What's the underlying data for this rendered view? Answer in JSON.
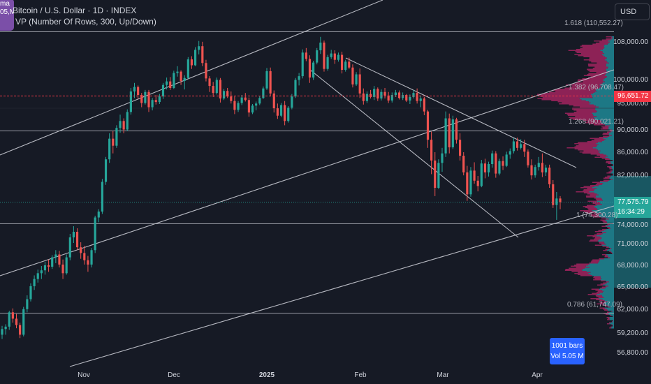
{
  "legend": {
    "avatar_line1": "ma",
    "avatar_line2": "05,M",
    "symbol": "Bitcoin / U.S. Dollar · 1D · INDEX",
    "indicator": "VP (Number Of Rows, 300, Up/Down)"
  },
  "currency": "USD",
  "price_ticks": [
    "108,000.00",
    "100,000.00",
    "95,000.00",
    "90,000.00",
    "86,000.00",
    "82,000.00",
    "74,000.00",
    "71,000.00",
    "68,000.00",
    "65,000.00",
    "62,000.00",
    "59,200.00",
    "56,800.00"
  ],
  "price_labels": {
    "red_line": "96,651.72",
    "current": "77,575.79",
    "countdown": "16:34:29"
  },
  "fib_labels": [
    "1.618 (110,552.27)",
    "1.382 (96,708.47)",
    "1.268 (90,021.21)",
    "1 (74,300.28)",
    "0.786 (61,747.09)"
  ],
  "time_ticks": [
    "Nov",
    "Dec",
    "2025",
    "Feb",
    "Mar",
    "Apr"
  ],
  "badge": {
    "bars": "1001 bars",
    "vol": "Vol 5.05 M"
  },
  "colors": {
    "up": "#26a69a",
    "down": "#ef5350",
    "profile_up": "#1e8a96",
    "profile_down": "#a2255f",
    "red_line": "#f23645",
    "badge": "#2962ff"
  },
  "chart_data": {
    "type": "candlestick",
    "x_range": [
      "2024-10-15",
      "2025-04-08"
    ],
    "ohlc": [
      [
        59000,
        60100,
        58500,
        59700
      ],
      [
        59700,
        60300,
        59000,
        60000
      ],
      [
        60000,
        62000,
        59600,
        61800
      ],
      [
        61800,
        62300,
        60500,
        61000
      ],
      [
        61000,
        61600,
        59800,
        60200
      ],
      [
        60200,
        60500,
        58600,
        59000
      ],
      [
        59000,
        62500,
        58800,
        62200
      ],
      [
        62200,
        64000,
        61800,
        63500
      ],
      [
        63500,
        65600,
        63200,
        65200
      ],
      [
        65200,
        66700,
        64700,
        66200
      ],
      [
        66200,
        67500,
        65700,
        67000
      ],
      [
        67000,
        68000,
        66200,
        67400
      ],
      [
        67400,
        68600,
        66800,
        68100
      ],
      [
        68100,
        68900,
        67200,
        67900
      ],
      [
        67900,
        69500,
        67600,
        69200
      ],
      [
        69200,
        70200,
        68400,
        69600
      ],
      [
        69600,
        70100,
        67800,
        68200
      ],
      [
        68200,
        68900,
        66200,
        67000
      ],
      [
        67000,
        69600,
        66800,
        69200
      ],
      [
        69200,
        72500,
        68800,
        72000
      ],
      [
        72000,
        73600,
        71200,
        72800
      ],
      [
        72800,
        73300,
        70200,
        70600
      ],
      [
        70600,
        71300,
        69000,
        69800
      ],
      [
        69800,
        70800,
        68200,
        68800
      ],
      [
        68800,
        69400,
        67200,
        68200
      ],
      [
        68200,
        70500,
        67800,
        70200
      ],
      [
        70200,
        75300,
        69800,
        75000
      ],
      [
        75000,
        76400,
        74200,
        76000
      ],
      [
        76000,
        81500,
        75600,
        81000
      ],
      [
        81000,
        85200,
        80500,
        84800
      ],
      [
        84800,
        89500,
        84200,
        88500
      ],
      [
        88500,
        89900,
        85800,
        87200
      ],
      [
        87200,
        91000,
        86800,
        90500
      ],
      [
        90500,
        93000,
        89600,
        91800
      ],
      [
        91800,
        92300,
        89500,
        90200
      ],
      [
        90200,
        94000,
        89900,
        93500
      ],
      [
        93500,
        98200,
        93000,
        97500
      ],
      [
        97500,
        99200,
        96200,
        98400
      ],
      [
        98400,
        98700,
        96000,
        96800
      ],
      [
        96800,
        97200,
        94400,
        95200
      ],
      [
        95200,
        97800,
        94900,
        97400
      ],
      [
        97400,
        97800,
        93500,
        94400
      ],
      [
        94400,
        96200,
        93800,
        95800
      ],
      [
        95800,
        96800,
        94900,
        95400
      ],
      [
        95400,
        97000,
        95000,
        96500
      ],
      [
        96500,
        99200,
        96000,
        98800
      ],
      [
        98800,
        100300,
        97900,
        99500
      ],
      [
        99500,
        100400,
        97800,
        98200
      ],
      [
        98200,
        101800,
        98000,
        101300
      ],
      [
        101300,
        102800,
        100500,
        101600
      ],
      [
        101600,
        101900,
        98800,
        99600
      ],
      [
        99600,
        100800,
        97900,
        100200
      ],
      [
        100200,
        104800,
        100000,
        104300
      ],
      [
        104300,
        105000,
        102200,
        103000
      ],
      [
        103000,
        107000,
        102800,
        106400
      ],
      [
        106400,
        108400,
        105400,
        107200
      ],
      [
        107200,
        108200,
        102800,
        103500
      ],
      [
        103500,
        104200,
        99500,
        100100
      ],
      [
        100100,
        100600,
        97400,
        98600
      ],
      [
        98600,
        99400,
        96400,
        97200
      ],
      [
        97200,
        100300,
        96900,
        99800
      ],
      [
        99800,
        100200,
        95300,
        96100
      ],
      [
        96100,
        98000,
        95800,
        97600
      ],
      [
        97600,
        98200,
        96200,
        96500
      ],
      [
        96500,
        97500,
        95100,
        95600
      ],
      [
        95600,
        96500,
        93100,
        93900
      ],
      [
        93900,
        95600,
        93500,
        95200
      ],
      [
        95200,
        96800,
        94800,
        96300
      ],
      [
        96300,
        97200,
        95500,
        95800
      ],
      [
        95800,
        96300,
        92600,
        93400
      ],
      [
        93400,
        95000,
        93100,
        94700
      ],
      [
        94700,
        95500,
        93800,
        95100
      ],
      [
        95100,
        96600,
        94800,
        96200
      ],
      [
        96200,
        98500,
        96000,
        98100
      ],
      [
        98100,
        102400,
        97800,
        101700
      ],
      [
        101700,
        102500,
        96500,
        97100
      ],
      [
        97100,
        97700,
        93400,
        94200
      ],
      [
        94200,
        95100,
        92200,
        92800
      ],
      [
        92800,
        95200,
        92500,
        94800
      ],
      [
        94800,
        95600,
        91000,
        91800
      ],
      [
        91800,
        94600,
        91500,
        94300
      ],
      [
        94300,
        97000,
        94000,
        96500
      ],
      [
        96500,
        100200,
        96200,
        99800
      ],
      [
        99800,
        101300,
        98700,
        100600
      ],
      [
        100600,
        106500,
        100100,
        105800
      ],
      [
        105800,
        106800,
        103900,
        104400
      ],
      [
        104400,
        105200,
        99200,
        100300
      ],
      [
        100300,
        104000,
        99800,
        103600
      ],
      [
        103600,
        106800,
        103200,
        106300
      ],
      [
        106300,
        109400,
        105500,
        108000
      ],
      [
        108000,
        108500,
        101600,
        102200
      ],
      [
        102200,
        105300,
        101800,
        104800
      ],
      [
        104800,
        106400,
        104400,
        105600
      ],
      [
        105600,
        106300,
        103300,
        104200
      ],
      [
        104200,
        105800,
        103800,
        105300
      ],
      [
        105300,
        106000,
        101200,
        102000
      ],
      [
        102000,
        104200,
        101600,
        103800
      ],
      [
        103800,
        104700,
        102200,
        102500
      ],
      [
        102500,
        103200,
        98300,
        98900
      ],
      [
        98900,
        101500,
        98600,
        101000
      ],
      [
        101000,
        102300,
        96200,
        97100
      ],
      [
        97100,
        98100,
        94900,
        95600
      ],
      [
        95600,
        97500,
        95200,
        97000
      ],
      [
        97000,
        97800,
        96100,
        96400
      ],
      [
        96400,
        98600,
        95800,
        98000
      ],
      [
        98000,
        98300,
        95600,
        96100
      ],
      [
        96100,
        97900,
        95700,
        97400
      ],
      [
        97400,
        98200,
        96100,
        96700
      ],
      [
        96700,
        97400,
        95200,
        95700
      ],
      [
        95700,
        97300,
        95300,
        96800
      ],
      [
        96800,
        97800,
        96400,
        97300
      ],
      [
        97300,
        97700,
        95900,
        96200
      ],
      [
        96200,
        97300,
        95800,
        96800
      ],
      [
        96800,
        97000,
        95400,
        95700
      ],
      [
        95700,
        96900,
        95000,
        96400
      ],
      [
        96400,
        97800,
        96100,
        97200
      ],
      [
        97200,
        98100,
        95100,
        95600
      ],
      [
        95600,
        96700,
        94400,
        96100
      ],
      [
        96100,
        96400,
        92900,
        93600
      ],
      [
        93600,
        93900,
        86800,
        88300
      ],
      [
        88300,
        89800,
        82300,
        84600
      ],
      [
        84600,
        86000,
        78600,
        80000
      ],
      [
        80000,
        84800,
        79800,
        84200
      ],
      [
        84200,
        86800,
        82700,
        85800
      ],
      [
        85800,
        93600,
        85200,
        92300
      ],
      [
        92300,
        93200,
        85800,
        86900
      ],
      [
        86900,
        92800,
        86600,
        92100
      ],
      [
        92100,
        92400,
        87600,
        88300
      ],
      [
        88300,
        89500,
        84600,
        85400
      ],
      [
        85400,
        86000,
        82100,
        82600
      ],
      [
        82600,
        83700,
        77800,
        78900
      ],
      [
        78900,
        83500,
        78500,
        82900
      ],
      [
        82900,
        84300,
        80700,
        81200
      ],
      [
        81200,
        82000,
        79400,
        80300
      ],
      [
        80300,
        84700,
        80100,
        84100
      ],
      [
        84100,
        84900,
        81600,
        82600
      ],
      [
        82600,
        84400,
        81900,
        84000
      ],
      [
        84000,
        86300,
        83400,
        85800
      ],
      [
        85800,
        86200,
        81700,
        82400
      ],
      [
        82400,
        84900,
        82100,
        84500
      ],
      [
        84500,
        85300,
        83000,
        83700
      ],
      [
        83700,
        86100,
        83500,
        85600
      ],
      [
        85600,
        86700,
        84900,
        86200
      ],
      [
        86200,
        88600,
        85800,
        88000
      ],
      [
        88000,
        88700,
        86300,
        86800
      ],
      [
        86800,
        88400,
        86500,
        87500
      ],
      [
        87500,
        88300,
        85200,
        86100
      ],
      [
        86100,
        86500,
        83400,
        83800
      ],
      [
        83800,
        84800,
        81400,
        82100
      ],
      [
        82100,
        83900,
        81700,
        83500
      ],
      [
        83500,
        85200,
        82900,
        84200
      ],
      [
        84200,
        85800,
        81800,
        82600
      ],
      [
        82600,
        83900,
        82000,
        83400
      ],
      [
        83400,
        83900,
        80000,
        80600
      ],
      [
        80600,
        81300,
        76600,
        77100
      ],
      [
        77100,
        79300,
        74600,
        78200
      ],
      [
        78200,
        78600,
        76400,
        77575
      ]
    ]
  }
}
